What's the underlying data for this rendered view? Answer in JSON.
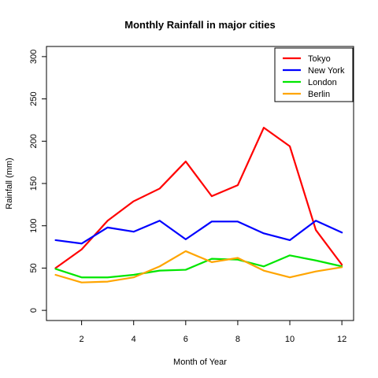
{
  "chart_data": {
    "type": "line",
    "title": "Monthly Rainfall in major cities",
    "xlabel": "Month of Year",
    "ylabel": "Rainfall (mm)",
    "x": [
      1,
      2,
      3,
      4,
      5,
      6,
      7,
      8,
      9,
      10,
      11,
      12
    ],
    "xlim": [
      0.65,
      12.45
    ],
    "ylim": [
      -12,
      312
    ],
    "x_ticks": [
      2,
      4,
      6,
      8,
      10,
      12
    ],
    "y_ticks": [
      0,
      50,
      100,
      150,
      200,
      250,
      300
    ],
    "grid": false,
    "legend_position": "top-right",
    "series": [
      {
        "name": "Tokyo",
        "color": "#ff0000",
        "values": [
          50,
          72,
          106,
          129,
          144,
          176,
          135,
          148,
          216,
          194,
          95,
          54
        ]
      },
      {
        "name": "New York",
        "color": "#0000ff",
        "values": [
          83,
          79,
          98,
          93,
          106,
          84,
          105,
          105,
          91,
          83,
          106,
          92
        ]
      },
      {
        "name": "London",
        "color": "#00e600",
        "values": [
          49,
          39,
          39,
          42,
          47,
          48,
          61,
          60,
          52,
          65,
          59,
          52
        ]
      },
      {
        "name": "Berlin",
        "color": "#ffa500",
        "values": [
          42,
          33,
          34,
          39,
          52,
          70,
          57,
          62,
          47,
          39,
          46,
          51
        ]
      }
    ]
  }
}
